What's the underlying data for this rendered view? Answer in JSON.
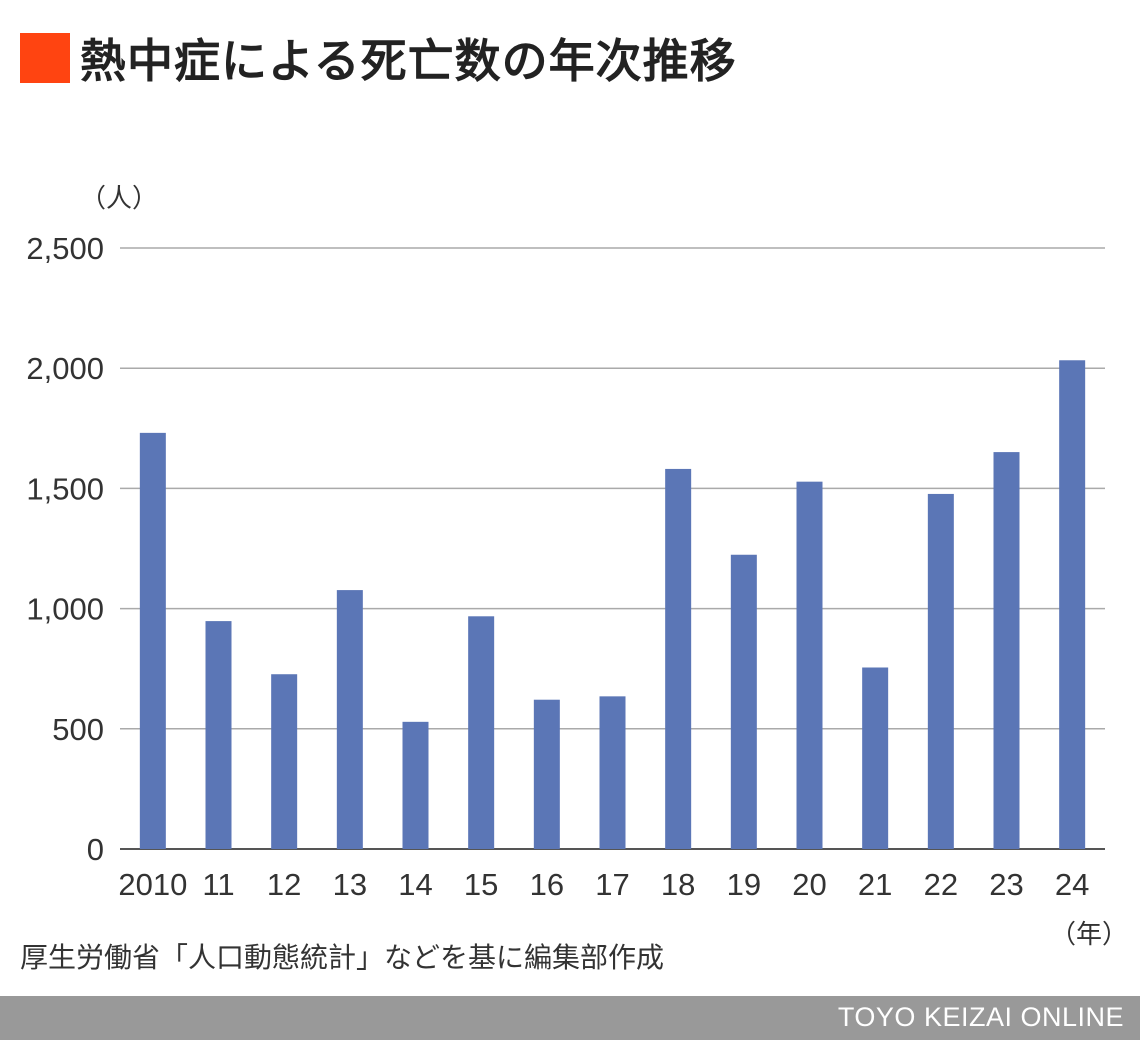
{
  "title": "熱中症による死亡数の年次推移",
  "colors": {
    "accent": "#ff4411",
    "bar": "#5b76b6",
    "grid": "#aaaaaa",
    "footer_bg": "#999999"
  },
  "chart_data": {
    "type": "bar",
    "categories": [
      "2010",
      "11",
      "12",
      "13",
      "14",
      "15",
      "16",
      "17",
      "18",
      "19",
      "20",
      "21",
      "22",
      "23",
      "24"
    ],
    "values": [
      1731,
      948,
      727,
      1077,
      529,
      968,
      621,
      635,
      1581,
      1224,
      1528,
      755,
      1477,
      1651,
      2033
    ],
    "ylim": [
      0,
      2500
    ],
    "yticks": [
      0,
      500,
      1000,
      1500,
      2000,
      2500
    ],
    "ytick_labels": [
      "0",
      "500",
      "1,000",
      "1,500",
      "2,000",
      "2,500"
    ],
    "y_unit": "（人）",
    "x_unit": "（年）",
    "grid": true
  },
  "source": "厚生労働省「人口動態統計」などを基に編集部作成",
  "footer": "TOYO KEIZAI ONLINE"
}
